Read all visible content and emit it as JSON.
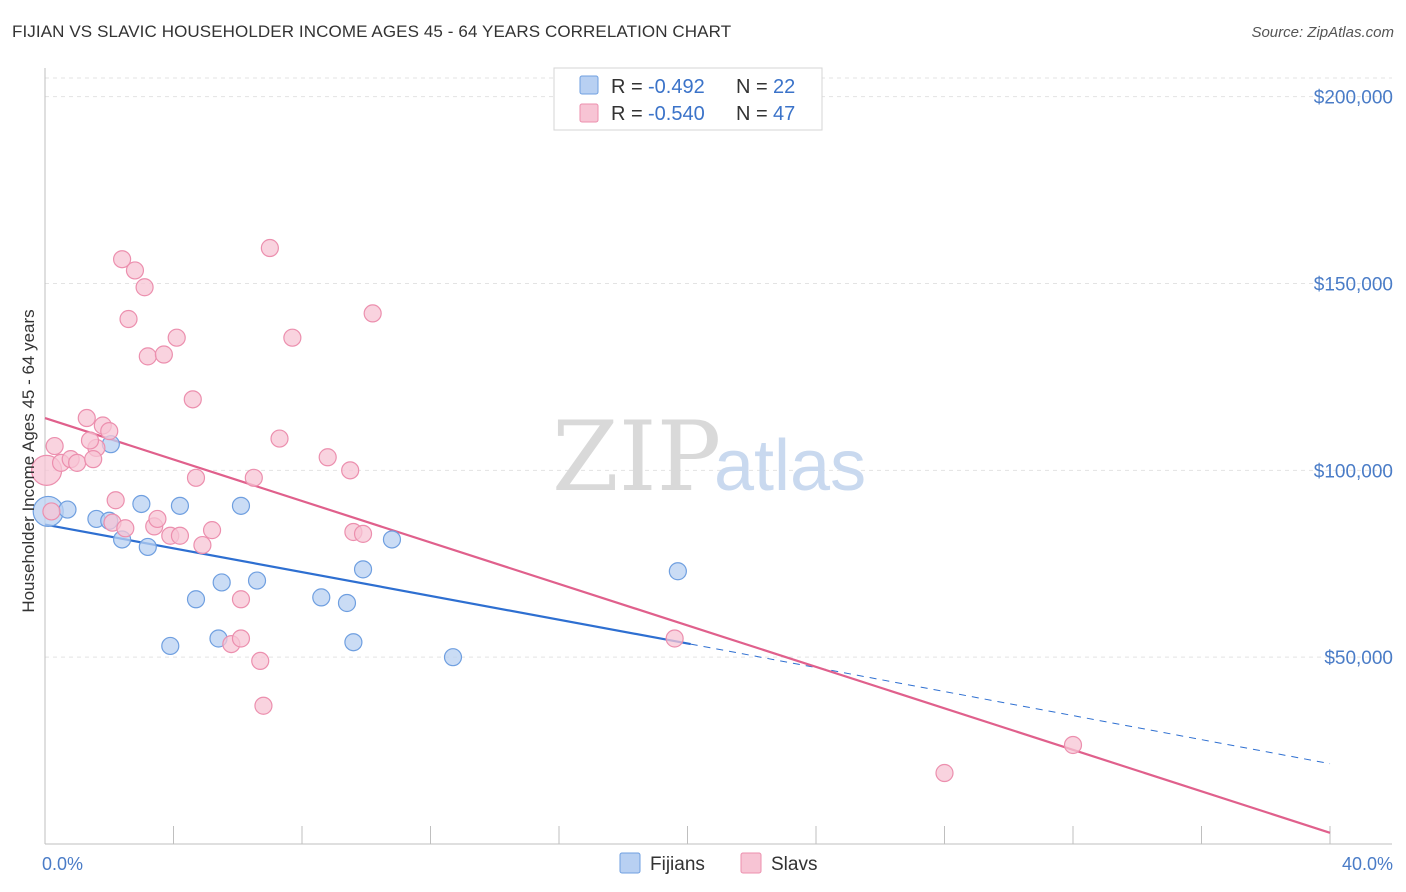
{
  "title": "FIJIAN VS SLAVIC HOUSEHOLDER INCOME AGES 45 - 64 YEARS CORRELATION CHART",
  "source": "Source: ZipAtlas.com",
  "watermark": {
    "zip": "ZIP",
    "atlas": "atlas"
  },
  "colors": {
    "fijians_fill": "#b8d0f2",
    "fijians_stroke": "#6f9fe0",
    "fijians_line": "#2e6fd1",
    "slavs_fill": "#f7c4d4",
    "slavs_stroke": "#ec8fae",
    "slavs_line": "#e0608c",
    "grid": "#e3e3e3",
    "tick_label": "#4a7cc7"
  },
  "legend": {
    "rows": [
      {
        "r_label": "R =",
        "r_value": "-0.492",
        "n_label": "N =",
        "n_value": "22"
      },
      {
        "r_label": "R =",
        "r_value": "-0.540",
        "n_label": "N =",
        "n_value": "47"
      }
    ]
  },
  "bottom_legend": [
    "Fijians",
    "Slavs"
  ],
  "chart_data": {
    "type": "scatter",
    "ylabel": "Householder Income Ages 45 - 64 years",
    "xlim": [
      0,
      40
    ],
    "ylim": [
      0,
      205000
    ],
    "x_tick_labels": [
      "0.0%",
      "40.0%"
    ],
    "y_ticks": [
      50000,
      100000,
      150000,
      200000
    ],
    "y_tick_labels": [
      "$50,000",
      "$100,000",
      "$150,000",
      "$200,000"
    ],
    "grid": true,
    "series": [
      {
        "name": "Fijians",
        "points": [
          [
            0.1,
            89000
          ],
          [
            0.7,
            89500
          ],
          [
            1.6,
            87000
          ],
          [
            2.0,
            86500
          ],
          [
            2.4,
            81500
          ],
          [
            2.05,
            107000
          ],
          [
            3.0,
            91000
          ],
          [
            3.2,
            79500
          ],
          [
            4.2,
            90500
          ],
          [
            4.7,
            65500
          ],
          [
            5.4,
            55000
          ],
          [
            5.5,
            70000
          ],
          [
            6.1,
            90500
          ],
          [
            6.6,
            70500
          ],
          [
            8.6,
            66000
          ],
          [
            9.4,
            64500
          ],
          [
            9.6,
            54000
          ],
          [
            9.9,
            73500
          ],
          [
            10.8,
            81500
          ],
          [
            12.7,
            50000
          ],
          [
            19.7,
            73000
          ],
          [
            3.9,
            53000
          ]
        ],
        "trend": {
          "x": [
            0,
            20.1
          ],
          "y": [
            85500,
            53500
          ]
        },
        "trend_ext": {
          "x": [
            20.1,
            40
          ],
          "y": [
            53500,
            21500
          ]
        }
      },
      {
        "name": "Slavs",
        "points": [
          [
            0.05,
            100000
          ],
          [
            0.3,
            106500
          ],
          [
            0.5,
            102000
          ],
          [
            0.8,
            103000
          ],
          [
            1.0,
            102000
          ],
          [
            1.3,
            114000
          ],
          [
            1.6,
            106000
          ],
          [
            1.8,
            112000
          ],
          [
            1.4,
            108000
          ],
          [
            2.0,
            110500
          ],
          [
            2.2,
            92000
          ],
          [
            2.1,
            86000
          ],
          [
            2.5,
            84500
          ],
          [
            2.4,
            156500
          ],
          [
            2.6,
            140500
          ],
          [
            2.8,
            153500
          ],
          [
            3.1,
            149000
          ],
          [
            3.2,
            130500
          ],
          [
            3.4,
            85000
          ],
          [
            3.5,
            87000
          ],
          [
            3.7,
            131000
          ],
          [
            3.9,
            82500
          ],
          [
            4.1,
            135500
          ],
          [
            4.2,
            82500
          ],
          [
            4.6,
            119000
          ],
          [
            4.7,
            98000
          ],
          [
            4.9,
            80000
          ],
          [
            5.2,
            84000
          ],
          [
            5.8,
            53500
          ],
          [
            6.1,
            65500
          ],
          [
            6.1,
            55000
          ],
          [
            6.5,
            98000
          ],
          [
            6.7,
            49000
          ],
          [
            6.8,
            37000
          ],
          [
            7.0,
            159500
          ],
          [
            7.3,
            108500
          ],
          [
            7.7,
            135500
          ],
          [
            8.8,
            103500
          ],
          [
            9.5,
            100000
          ],
          [
            9.6,
            83500
          ],
          [
            9.9,
            83000
          ],
          [
            10.2,
            142000
          ],
          [
            19.6,
            55000
          ],
          [
            28.0,
            19000
          ],
          [
            32.0,
            26500
          ],
          [
            0.2,
            89000
          ],
          [
            1.5,
            103000
          ]
        ],
        "trend": {
          "x": [
            0,
            40
          ],
          "y": [
            114000,
            3000
          ]
        }
      }
    ]
  }
}
